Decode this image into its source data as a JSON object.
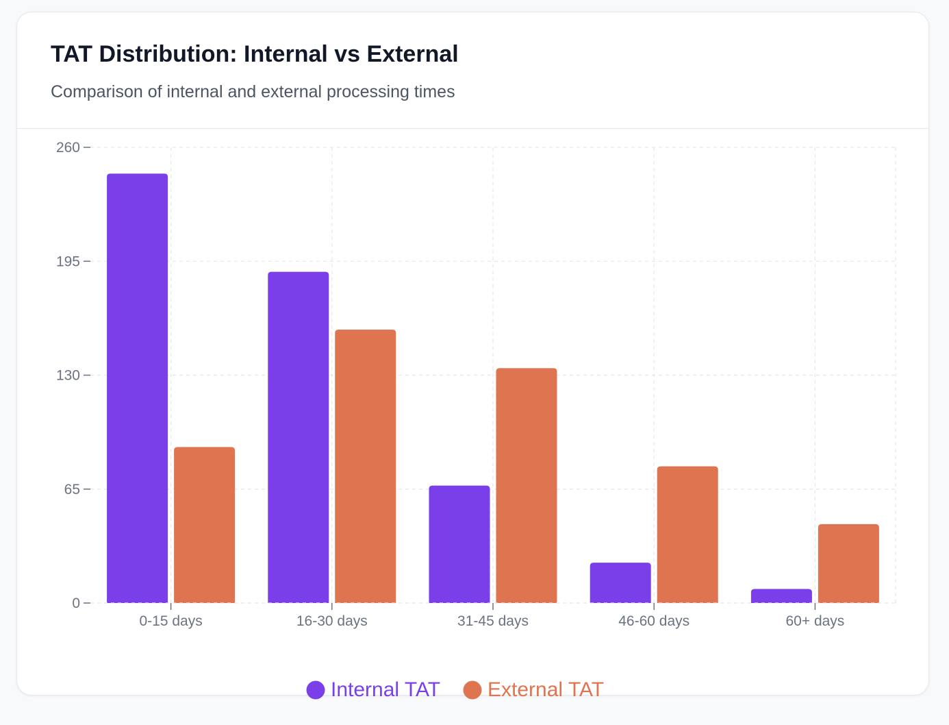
{
  "card": {
    "title": "TAT Distribution: Internal vs External",
    "subtitle": "Comparison of internal and external processing times"
  },
  "colors": {
    "internal": "#7a3fe8",
    "external": "#df7450",
    "grid": "#e5e7eb",
    "axis": "#6b7280"
  },
  "chart_data": {
    "type": "bar",
    "categories": [
      "0-15 days",
      "16-30 days",
      "31-45 days",
      "46-60 days",
      "60+ days"
    ],
    "series": [
      {
        "name": "Internal TAT",
        "values": [
          245,
          189,
          67,
          23,
          8
        ]
      },
      {
        "name": "External TAT",
        "values": [
          89,
          156,
          134,
          78,
          45
        ]
      }
    ],
    "ylim": [
      0,
      260
    ],
    "yticks": [
      0,
      65,
      130,
      195,
      260
    ],
    "grid": true,
    "legend_position": "bottom-center"
  }
}
